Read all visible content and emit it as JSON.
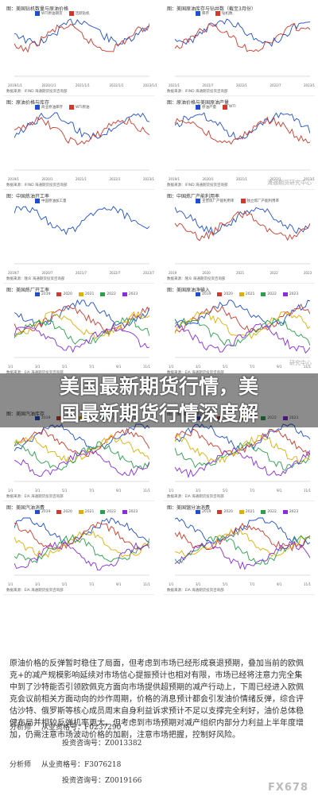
{
  "panels": [
    {
      "title": "图：美国钻机数量与原油价格",
      "src": "数据来源：IFIND  海通期货投资咨询部",
      "legend": [
        "WTI原油期货",
        "活跃钻机"
      ],
      "x": [
        "2019/1/1",
        "2020/1/1",
        "2021/1/1",
        "2022/1/1",
        "2023/1/1"
      ]
    },
    {
      "title": "图：美国原油库存与钻井数（截至3月份）",
      "src": "数据来源：IFIND  海通期货投资咨询部",
      "legend": [
        "库存",
        "钻机数"
      ],
      "x": [
        "2021/1",
        "2021/7",
        "2022/1",
        "2022/7",
        "2023/1"
      ]
    },
    {
      "title": "图：原油价格与库存",
      "src": "数据来源：IFIND  海通期货投资咨询部",
      "legend": [
        "商业原油库存",
        "WTI原油"
      ],
      "x": [
        "2019/1",
        "2020/1",
        "2021/1",
        "2022/1",
        "2023/1"
      ]
    },
    {
      "title": "图：原油价格与美国原油产量",
      "src": "数据来源：IFIND  海通期货投资咨询部",
      "legend": [
        "原油产量",
        "WTI"
      ],
      "x": [
        "2019/1",
        "2020/1",
        "2021/1",
        "2022/1",
        "2023/1"
      ]
    },
    {
      "title": "图：中国炼油开工率",
      "src": "数据来源：隆众  海通期货投资咨询部",
      "legend": [
        "中国原油加工量"
      ],
      "x": [
        "2019/7",
        "2020/7",
        "2021/7",
        "2022/7",
        "2023/7"
      ]
    },
    {
      "title": "图：中国炼厂产能利用率",
      "src": "数据来源：隆众  海通期货投资咨询部",
      "legend": [
        "主营炼厂产能利用率",
        "独立炼厂产能利用率"
      ],
      "x": [
        "2019",
        "2020",
        "2021",
        "2022",
        "2023"
      ]
    },
    {
      "title": "图：美国炼厂开工率",
      "src": "数据来源：EIA  海通期货投资咨询部",
      "legend": [
        "2019",
        "2020",
        "2021",
        "2022",
        "2023"
      ],
      "x": [
        "1/1",
        "3/1",
        "5/1",
        "7/1",
        "9/1",
        "11/1"
      ]
    },
    {
      "title": "图：美国原油净输入",
      "src": "数据来源：EIA  海通期货投资咨询部",
      "legend": [
        "2019",
        "2020",
        "2021",
        "2022",
        "2023"
      ],
      "x": [
        "1/1",
        "3/1",
        "5/1",
        "7/1",
        "9/1",
        "11/1"
      ]
    },
    {
      "title": "图：美国汽油库存",
      "src": "数据来源：EIA  海通期货投资咨询部",
      "legend": [
        "2019",
        "2020",
        "2021",
        "2022",
        "2023"
      ],
      "x": [
        "1/1",
        "3/1",
        "5/1",
        "7/1",
        "9/1",
        "11/1"
      ]
    },
    {
      "title": "图：美国馏分油库存",
      "src": "数据来源：EIA  海通期货投资咨询部",
      "legend": [
        "2019",
        "2020",
        "2021",
        "2022",
        "2023"
      ],
      "x": [
        "1/1",
        "3/1",
        "5/1",
        "7/1",
        "9/1",
        "11/1"
      ]
    },
    {
      "title": "图：美国汽油消费",
      "src": "数据来源：EIA  海通期货投资咨询部",
      "legend": [
        "2019",
        "2020",
        "2021",
        "2022",
        "2023"
      ],
      "x": [
        "1/1",
        "3/1",
        "5/1",
        "7/1",
        "9/1",
        "11/1"
      ]
    },
    {
      "title": "图：美国馏分油消费",
      "src": "数据来源：EIA  海通期货投资咨询部",
      "legend": [
        "2019",
        "2020",
        "2021",
        "2022",
        "2023"
      ],
      "x": [
        "1/1",
        "3/1",
        "5/1",
        "7/1",
        "9/1",
        "11/1"
      ]
    }
  ],
  "banner": {
    "line1": "美国最新期货行情，美",
    "line2": "国最新期货行情深度解"
  },
  "body_text": "原油价格的反弹暂时稳住了局面，但考虑到市场已经形成衰退预期，叠加当前的欧佩克+的减产规模影响延续对市场信心提振预计也相对有限，市场已经将注意力完全集中到了沙特能否引领欧佩克方面向市场提供超预期的减产行动上，下周已经进入欧佩克会议前相关方面动向的炒作周期，价格的消息预计都会引发油价情绪反弹，综合评估沙特、俄罗斯等核心成员周末自身利益诉求预计不足以支撑完全利好，油价总体稳健布局并相较反弹机率更大，但考虑到市场预期对减产组织内部分力利益上半年度增加，仍需注意市场波动价格的加剧，注意市场把握，控制好风险。",
  "authors": [
    {
      "role": "分析师",
      "cert": "从业资格号：F0237290",
      "inv": "投资咨询号：Z0013382"
    },
    {
      "role": "分析师",
      "cert": "从业资格号：F3076218",
      "inv": "投资咨询号：Z0019166"
    }
  ],
  "watermark": "FX678",
  "overlay_marks": [
    "海通期货研究中心",
    "研究中心"
  ]
}
